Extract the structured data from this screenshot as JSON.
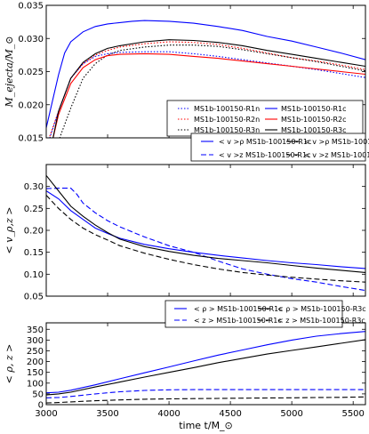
{
  "chart_data": [
    {
      "type": "line",
      "ylabel": "M_ejecta/M_⊙",
      "xlim": [
        3000,
        5600
      ],
      "ylim": [
        0.015,
        0.035
      ],
      "yticks": [
        "0.015",
        "0.020",
        "0.025",
        "0.030",
        "0.035"
      ],
      "legend_position": "lower-right",
      "series": [
        {
          "name": "MS1b-100150-R1n",
          "color": "#0000ff",
          "dash": "dot",
          "points": [
            [
              3020,
              0.0145
            ],
            [
              3100,
              0.019
            ],
            [
              3200,
              0.024
            ],
            [
              3300,
              0.0262
            ],
            [
              3400,
              0.0273
            ],
            [
              3500,
              0.0277
            ],
            [
              3600,
              0.0279
            ],
            [
              3800,
              0.028
            ],
            [
              4000,
              0.028
            ],
            [
              4200,
              0.0277
            ],
            [
              4400,
              0.0273
            ],
            [
              4600,
              0.0268
            ],
            [
              4800,
              0.0263
            ],
            [
              5000,
              0.0258
            ],
            [
              5200,
              0.0253
            ],
            [
              5400,
              0.0247
            ],
            [
              5600,
              0.0241
            ]
          ]
        },
        {
          "name": "MS1b-100150-R2n",
          "color": "#ff0000",
          "dash": "dot",
          "points": [
            [
              3020,
              0.0148
            ],
            [
              3100,
              0.019
            ],
            [
              3200,
              0.024
            ],
            [
              3300,
              0.0262
            ],
            [
              3400,
              0.0275
            ],
            [
              3500,
              0.0282
            ],
            [
              3600,
              0.0287
            ],
            [
              3800,
              0.0292
            ],
            [
              4000,
              0.0295
            ],
            [
              4200,
              0.0294
            ],
            [
              4400,
              0.0291
            ],
            [
              4600,
              0.0285
            ],
            [
              4800,
              0.0278
            ],
            [
              5000,
              0.0271
            ],
            [
              5200,
              0.0266
            ],
            [
              5400,
              0.026
            ],
            [
              5600,
              0.0253
            ]
          ]
        },
        {
          "name": "MS1b-100150-R3n",
          "color": "#000000",
          "dash": "dot",
          "points": [
            [
              3100,
              0.0145
            ],
            [
              3200,
              0.0195
            ],
            [
              3300,
              0.024
            ],
            [
              3400,
              0.0262
            ],
            [
              3500,
              0.0275
            ],
            [
              3600,
              0.0282
            ],
            [
              3800,
              0.0287
            ],
            [
              4000,
              0.029
            ],
            [
              4200,
              0.029
            ],
            [
              4400,
              0.0288
            ],
            [
              4600,
              0.0283
            ],
            [
              4800,
              0.0277
            ],
            [
              5000,
              0.0271
            ],
            [
              5200,
              0.0265
            ],
            [
              5400,
              0.0258
            ],
            [
              5600,
              0.0251
            ]
          ]
        },
        {
          "name": "MS1b-100150-R1c",
          "color": "#0000ff",
          "dash": "solid",
          "points": [
            [
              3000,
              0.0165
            ],
            [
              3050,
              0.0205
            ],
            [
              3100,
              0.0245
            ],
            [
              3150,
              0.0278
            ],
            [
              3200,
              0.0295
            ],
            [
              3300,
              0.031
            ],
            [
              3400,
              0.0318
            ],
            [
              3500,
              0.0322
            ],
            [
              3600,
              0.0324
            ],
            [
              3700,
              0.0326
            ],
            [
              3800,
              0.0327
            ],
            [
              4000,
              0.0326
            ],
            [
              4200,
              0.0323
            ],
            [
              4400,
              0.0318
            ],
            [
              4600,
              0.0312
            ],
            [
              4800,
              0.0303
            ],
            [
              5000,
              0.0296
            ],
            [
              5200,
              0.0287
            ],
            [
              5400,
              0.0278
            ],
            [
              5600,
              0.0268
            ]
          ]
        },
        {
          "name": "MS1b-100150-R2c",
          "color": "#ff0000",
          "dash": "solid",
          "points": [
            [
              3050,
              0.0145
            ],
            [
              3100,
              0.0185
            ],
            [
              3200,
              0.0232
            ],
            [
              3300,
              0.0256
            ],
            [
              3400,
              0.0268
            ],
            [
              3500,
              0.0274
            ],
            [
              3600,
              0.0276
            ],
            [
              3800,
              0.0277
            ],
            [
              4000,
              0.0276
            ],
            [
              4200,
              0.0273
            ],
            [
              4400,
              0.027
            ],
            [
              4600,
              0.0266
            ],
            [
              4800,
              0.0262
            ],
            [
              5000,
              0.0258
            ],
            [
              5200,
              0.0254
            ],
            [
              5400,
              0.025
            ],
            [
              5600,
              0.0246
            ]
          ]
        },
        {
          "name": "MS1b-100150-R3c",
          "color": "#000000",
          "dash": "solid",
          "points": [
            [
              3050,
              0.0145
            ],
            [
              3100,
              0.019
            ],
            [
              3200,
              0.024
            ],
            [
              3300,
              0.0264
            ],
            [
              3400,
              0.0277
            ],
            [
              3500,
              0.0285
            ],
            [
              3600,
              0.0289
            ],
            [
              3800,
              0.0295
            ],
            [
              4000,
              0.0298
            ],
            [
              4200,
              0.0297
            ],
            [
              4400,
              0.0294
            ],
            [
              4600,
              0.0289
            ],
            [
              4800,
              0.0282
            ],
            [
              5000,
              0.0276
            ],
            [
              5200,
              0.027
            ],
            [
              5400,
              0.0264
            ],
            [
              5600,
              0.0258
            ]
          ]
        }
      ]
    },
    {
      "type": "line",
      "ylabel": "< v_ρ,z >",
      "xlim": [
        3000,
        5600
      ],
      "ylim": [
        0.05,
        0.35
      ],
      "yticks": [
        "0.05",
        "0.10",
        "0.15",
        "0.20",
        "0.25",
        "0.30"
      ],
      "legend_position": "top-right",
      "series": [
        {
          "name": "< v >ρ MS1b-100150-R1c",
          "color": "#0000ff",
          "dash": "solid",
          "points": [
            [
              3000,
              0.29
            ],
            [
              3100,
              0.272
            ],
            [
              3200,
              0.245
            ],
            [
              3300,
              0.225
            ],
            [
              3400,
              0.205
            ],
            [
              3500,
              0.193
            ],
            [
              3600,
              0.182
            ],
            [
              3800,
              0.168
            ],
            [
              4000,
              0.158
            ],
            [
              4200,
              0.15
            ],
            [
              4400,
              0.143
            ],
            [
              4600,
              0.137
            ],
            [
              4800,
              0.131
            ],
            [
              5000,
              0.126
            ],
            [
              5200,
              0.122
            ],
            [
              5400,
              0.117
            ],
            [
              5600,
              0.113
            ]
          ]
        },
        {
          "name": "< v >z MS1b-100150-R1c",
          "color": "#0000ff",
          "dash": "dash",
          "points": [
            [
              3000,
              0.295
            ],
            [
              3100,
              0.296
            ],
            [
              3200,
              0.296
            ],
            [
              3250,
              0.282
            ],
            [
              3300,
              0.262
            ],
            [
              3400,
              0.24
            ],
            [
              3500,
              0.222
            ],
            [
              3600,
              0.208
            ],
            [
              3800,
              0.185
            ],
            [
              4000,
              0.165
            ],
            [
              4200,
              0.15
            ],
            [
              4400,
              0.13
            ],
            [
              4600,
              0.112
            ],
            [
              4800,
              0.1
            ],
            [
              5000,
              0.09
            ],
            [
              5200,
              0.082
            ],
            [
              5400,
              0.072
            ],
            [
              5600,
              0.063
            ]
          ]
        },
        {
          "name": "< v >ρ MS1b-100150-R3c",
          "color": "#000000",
          "dash": "solid",
          "points": [
            [
              3000,
              0.325
            ],
            [
              3100,
              0.29
            ],
            [
              3200,
              0.255
            ],
            [
              3300,
              0.232
            ],
            [
              3400,
              0.212
            ],
            [
              3500,
              0.195
            ],
            [
              3600,
              0.18
            ],
            [
              3800,
              0.163
            ],
            [
              4000,
              0.152
            ],
            [
              4200,
              0.143
            ],
            [
              4400,
              0.136
            ],
            [
              4600,
              0.131
            ],
            [
              4800,
              0.126
            ],
            [
              5000,
              0.12
            ],
            [
              5200,
              0.114
            ],
            [
              5400,
              0.109
            ],
            [
              5600,
              0.104
            ]
          ]
        },
        {
          "name": "< v >z MS1b-100150-R3c",
          "color": "#000000",
          "dash": "dash",
          "points": [
            [
              3000,
              0.28
            ],
            [
              3100,
              0.25
            ],
            [
              3200,
              0.225
            ],
            [
              3300,
              0.205
            ],
            [
              3400,
              0.19
            ],
            [
              3500,
              0.178
            ],
            [
              3600,
              0.165
            ],
            [
              3800,
              0.148
            ],
            [
              4000,
              0.134
            ],
            [
              4200,
              0.122
            ],
            [
              4400,
              0.112
            ],
            [
              4600,
              0.104
            ],
            [
              4800,
              0.098
            ],
            [
              5000,
              0.093
            ],
            [
              5200,
              0.089
            ],
            [
              5400,
              0.085
            ],
            [
              5600,
              0.082
            ]
          ]
        }
      ]
    },
    {
      "type": "line",
      "ylabel": "< ρ, z >",
      "xlabel": "time t/M_⊙",
      "xlim": [
        3000,
        5600
      ],
      "ylim": [
        0,
        380
      ],
      "xticks": [
        "3000",
        "3500",
        "4000",
        "4500",
        "5000",
        "5500"
      ],
      "yticks": [
        "0",
        "50",
        "100",
        "150",
        "200",
        "250",
        "300",
        "350"
      ],
      "legend_position": "top",
      "series": [
        {
          "name": "< ρ > MS1b-100150-R1c",
          "color": "#0000ff",
          "dash": "solid",
          "points": [
            [
              3000,
              55
            ],
            [
              3100,
              58
            ],
            [
              3200,
              67
            ],
            [
              3400,
              92
            ],
            [
              3600,
              120
            ],
            [
              3800,
              148
            ],
            [
              4000,
              175
            ],
            [
              4200,
              203
            ],
            [
              4400,
              230
            ],
            [
              4600,
              254
            ],
            [
              4800,
              278
            ],
            [
              5000,
              300
            ],
            [
              5200,
              318
            ],
            [
              5400,
              330
            ],
            [
              5600,
              340
            ]
          ]
        },
        {
          "name": "< z > MS1b-100150-R1c",
          "color": "#0000ff",
          "dash": "dash",
          "points": [
            [
              3000,
              32
            ],
            [
              3100,
              33
            ],
            [
              3200,
              38
            ],
            [
              3400,
              50
            ],
            [
              3600,
              60
            ],
            [
              3800,
              66
            ],
            [
              4000,
              69
            ],
            [
              4200,
              70
            ],
            [
              4400,
              70
            ],
            [
              4600,
              70
            ],
            [
              4800,
              70
            ],
            [
              5000,
              70
            ],
            [
              5200,
              70
            ],
            [
              5400,
              70
            ],
            [
              5600,
              70
            ]
          ]
        },
        {
          "name": "< ρ > MS1b-100150-R3c",
          "color": "#000000",
          "dash": "solid",
          "points": [
            [
              3000,
              45
            ],
            [
              3100,
              50
            ],
            [
              3200,
              58
            ],
            [
              3400,
              82
            ],
            [
              3600,
              105
            ],
            [
              3800,
              128
            ],
            [
              4000,
              150
            ],
            [
              4200,
              172
            ],
            [
              4400,
              195
            ],
            [
              4600,
              215
            ],
            [
              4800,
              235
            ],
            [
              5000,
              252
            ],
            [
              5200,
              268
            ],
            [
              5400,
              285
            ],
            [
              5600,
              302
            ]
          ]
        },
        {
          "name": "< z > MS1b-100150-R3c",
          "color": "#000000",
          "dash": "dash",
          "points": [
            [
              3000,
              8
            ],
            [
              3100,
              10
            ],
            [
              3200,
              13
            ],
            [
              3400,
              18
            ],
            [
              3600,
              22
            ],
            [
              3800,
              25
            ],
            [
              4000,
              27
            ],
            [
              4200,
              28
            ],
            [
              4400,
              29
            ],
            [
              4600,
              30
            ],
            [
              4800,
              31
            ],
            [
              5000,
              32
            ],
            [
              5200,
              33
            ],
            [
              5400,
              34
            ],
            [
              5600,
              36
            ]
          ]
        }
      ]
    }
  ]
}
